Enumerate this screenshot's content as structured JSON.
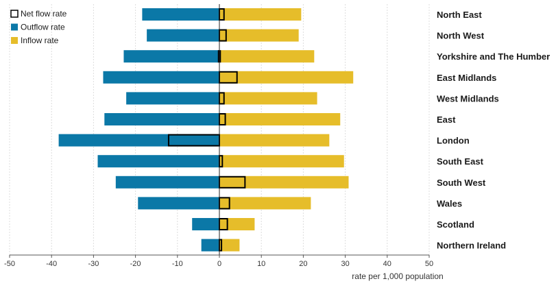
{
  "chart_data": {
    "type": "bar",
    "orientation": "horizontal",
    "categories": [
      "North East",
      "North West",
      "Yorkshire and The Humber",
      "East Midlands",
      "West Midlands",
      "East",
      "London",
      "South East",
      "South West",
      "Wales",
      "Scotland",
      "Northern Ireland"
    ],
    "series": [
      {
        "name": "Net flow rate",
        "color": "#e6bd2a",
        "values": [
          1.1,
          1.6,
          -0.2,
          4.2,
          1.1,
          1.4,
          -12.1,
          0.7,
          6.1,
          2.4,
          1.9,
          0.5
        ]
      },
      {
        "name": "Outflow rate",
        "color": "#0b78a7",
        "values": [
          -18.4,
          -17.3,
          -22.8,
          -27.7,
          -22.2,
          -27.4,
          -38.3,
          -29.0,
          -24.7,
          -19.4,
          -6.5,
          -4.3
        ]
      },
      {
        "name": "Inflow rate",
        "color": "#e6bd2a",
        "values": [
          19.5,
          18.9,
          22.6,
          31.9,
          23.3,
          28.8,
          26.2,
          29.7,
          30.8,
          21.8,
          8.4,
          4.8
        ]
      }
    ],
    "xlabel": "rate per 1,000 population",
    "ylabel": "",
    "xlim": [
      -50,
      50
    ],
    "xticks": [
      "-50",
      "-40",
      "-30",
      "-20",
      "-10",
      "0",
      "10",
      "20",
      "30",
      "40",
      "50"
    ],
    "grid": true,
    "legend": "top-left"
  }
}
